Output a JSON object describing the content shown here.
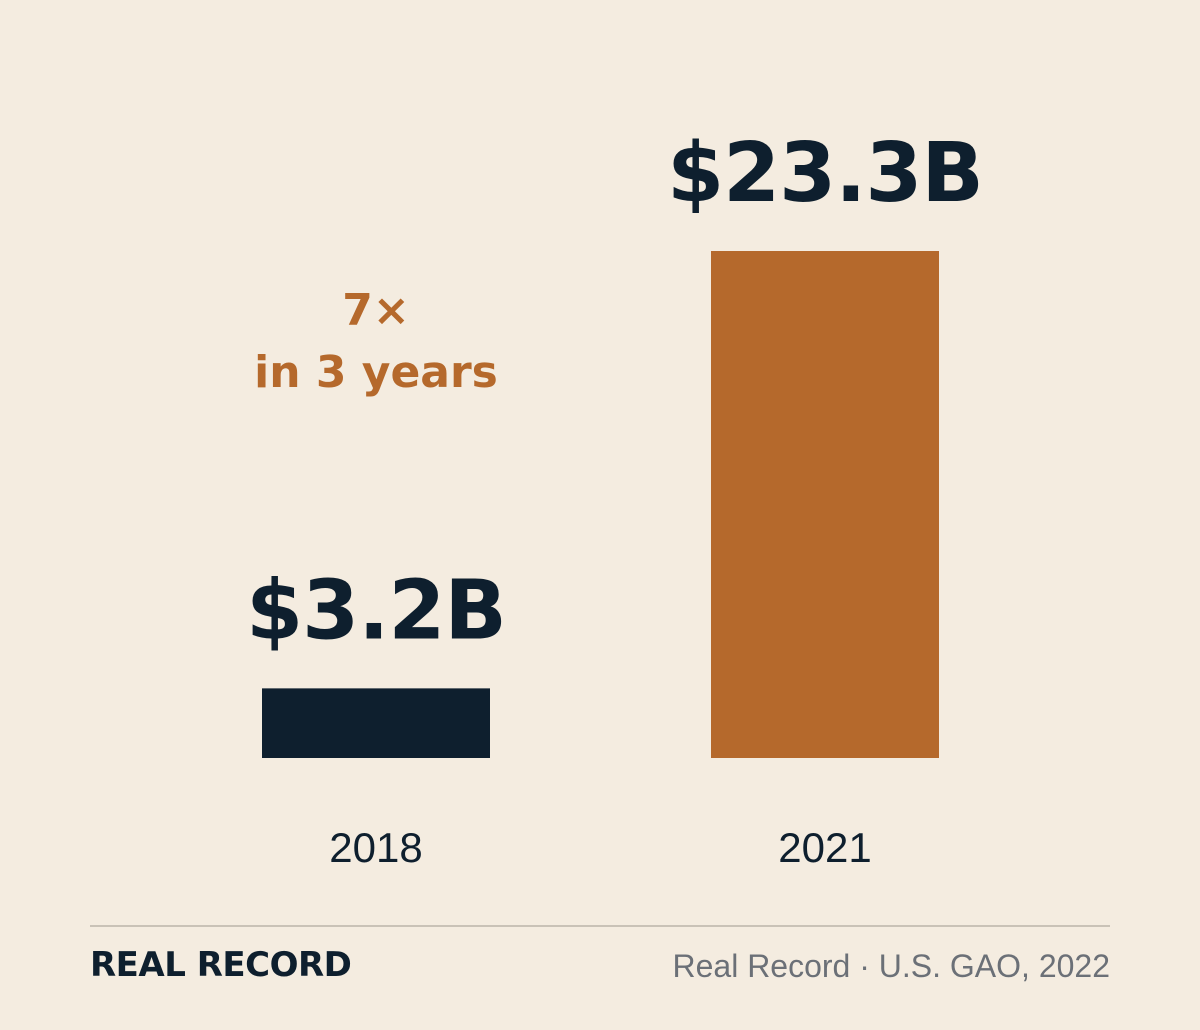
{
  "chart_data": {
    "type": "bar",
    "categories": [
      "2018",
      "2021"
    ],
    "values": [
      3.2,
      23.3
    ],
    "value_labels": [
      "$3.2B",
      "$23.3B"
    ],
    "title": "",
    "xlabel": "",
    "ylabel": "",
    "ylim": [
      0,
      23.3
    ],
    "grid": false,
    "colors": [
      "#0e1f2e",
      "#b5692c"
    ],
    "annotation": {
      "lines": [
        "7×",
        "in 3 years"
      ],
      "color": "#b5692c"
    }
  },
  "footer": {
    "brand": "REAL RECORD",
    "source": "Real Record · U.S. GAO, 2022"
  }
}
